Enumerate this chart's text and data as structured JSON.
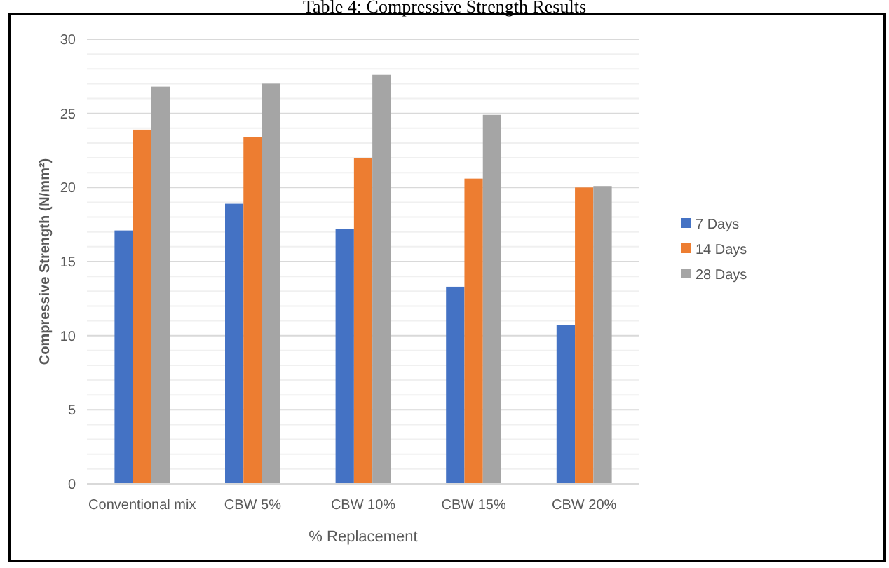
{
  "chart_data": {
    "type": "bar",
    "title": "Table 4: Compressive Strength Results",
    "xlabel": "% Replacement",
    "ylabel": "Compressive Strength (N/mm²)",
    "categories": [
      "Conventional mix",
      "CBW 5%",
      "CBW 10%",
      "CBW 15%",
      "CBW 20%"
    ],
    "series": [
      {
        "name": "7 Days",
        "color": "#4472c4",
        "values": [
          17.1,
          18.9,
          17.2,
          13.3,
          10.7
        ]
      },
      {
        "name": "14 Days",
        "color": "#ed7d31",
        "values": [
          23.9,
          23.4,
          22.0,
          20.6,
          20.0
        ]
      },
      {
        "name": "28 Days",
        "color": "#a5a5a5",
        "values": [
          26.8,
          27.0,
          27.6,
          24.9,
          20.1
        ]
      }
    ],
    "ylim": [
      0,
      30
    ],
    "yticks": [
      0,
      {
        "value": 1,
        "label": null
      },
      {
        "value": 2,
        "label": null
      },
      {
        "value": 3,
        "label": null
      },
      {
        "value": 4,
        "label": null
      },
      5,
      {
        "value": 6,
        "label": null
      },
      {
        "value": 7,
        "label": null
      },
      {
        "value": 8,
        "label": null
      },
      {
        "value": 9,
        "label": null
      },
      10,
      {
        "value": 11,
        "label": null
      },
      {
        "value": 12,
        "label": null
      },
      {
        "value": 13,
        "label": null
      },
      {
        "value": 14,
        "label": null
      },
      15,
      {
        "value": 16,
        "label": null
      },
      {
        "value": 17,
        "label": null
      },
      {
        "value": 18,
        "label": null
      },
      {
        "value": 19,
        "label": null
      },
      20,
      {
        "value": 21,
        "label": null
      },
      {
        "value": 22,
        "label": null
      },
      {
        "value": 23,
        "label": null
      },
      {
        "value": 24,
        "label": null
      },
      25,
      {
        "value": 26,
        "label": null
      },
      {
        "value": 27,
        "label": null
      },
      {
        "value": 28,
        "label": null
      },
      {
        "value": 29,
        "label": null
      },
      30
    ],
    "grid": "y",
    "legend": "right"
  }
}
